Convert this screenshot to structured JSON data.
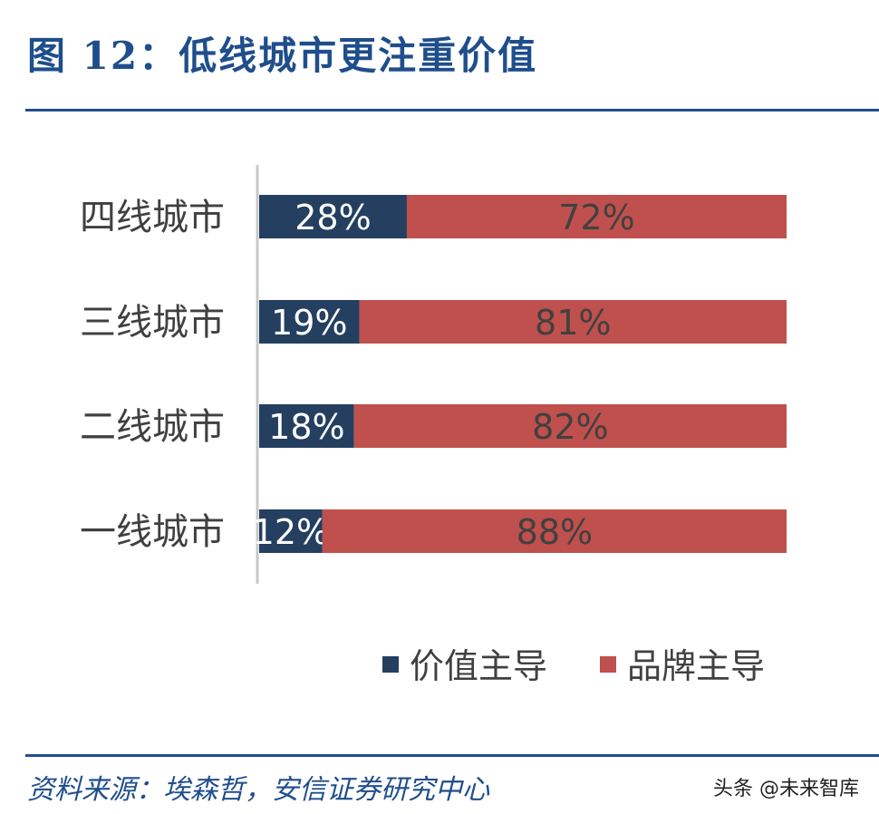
{
  "title": "图 12：低线城市更注重价值",
  "source": "资料来源：埃森哲，安信证券研究中心",
  "watermark": "头条 @未来智库",
  "colors": {
    "value": "#243f60",
    "brand": "#c0504d",
    "axis": "#c8c8c8",
    "label": "#404040"
  },
  "chart_data": {
    "type": "bar",
    "orientation": "horizontal",
    "stacked": true,
    "categories": [
      "四线城市",
      "三线城市",
      "二线城市",
      "一线城市"
    ],
    "series": [
      {
        "name": "价值主导",
        "values": [
          28,
          19,
          18,
          12
        ],
        "labels": [
          "28%",
          "19%",
          "18%",
          "12%"
        ]
      },
      {
        "name": "品牌主导",
        "values": [
          72,
          81,
          82,
          88
        ],
        "labels": [
          "72%",
          "81%",
          "82%",
          "88%"
        ]
      }
    ],
    "xlim": [
      0,
      100
    ],
    "legend_position": "bottom-right",
    "grid": false
  }
}
